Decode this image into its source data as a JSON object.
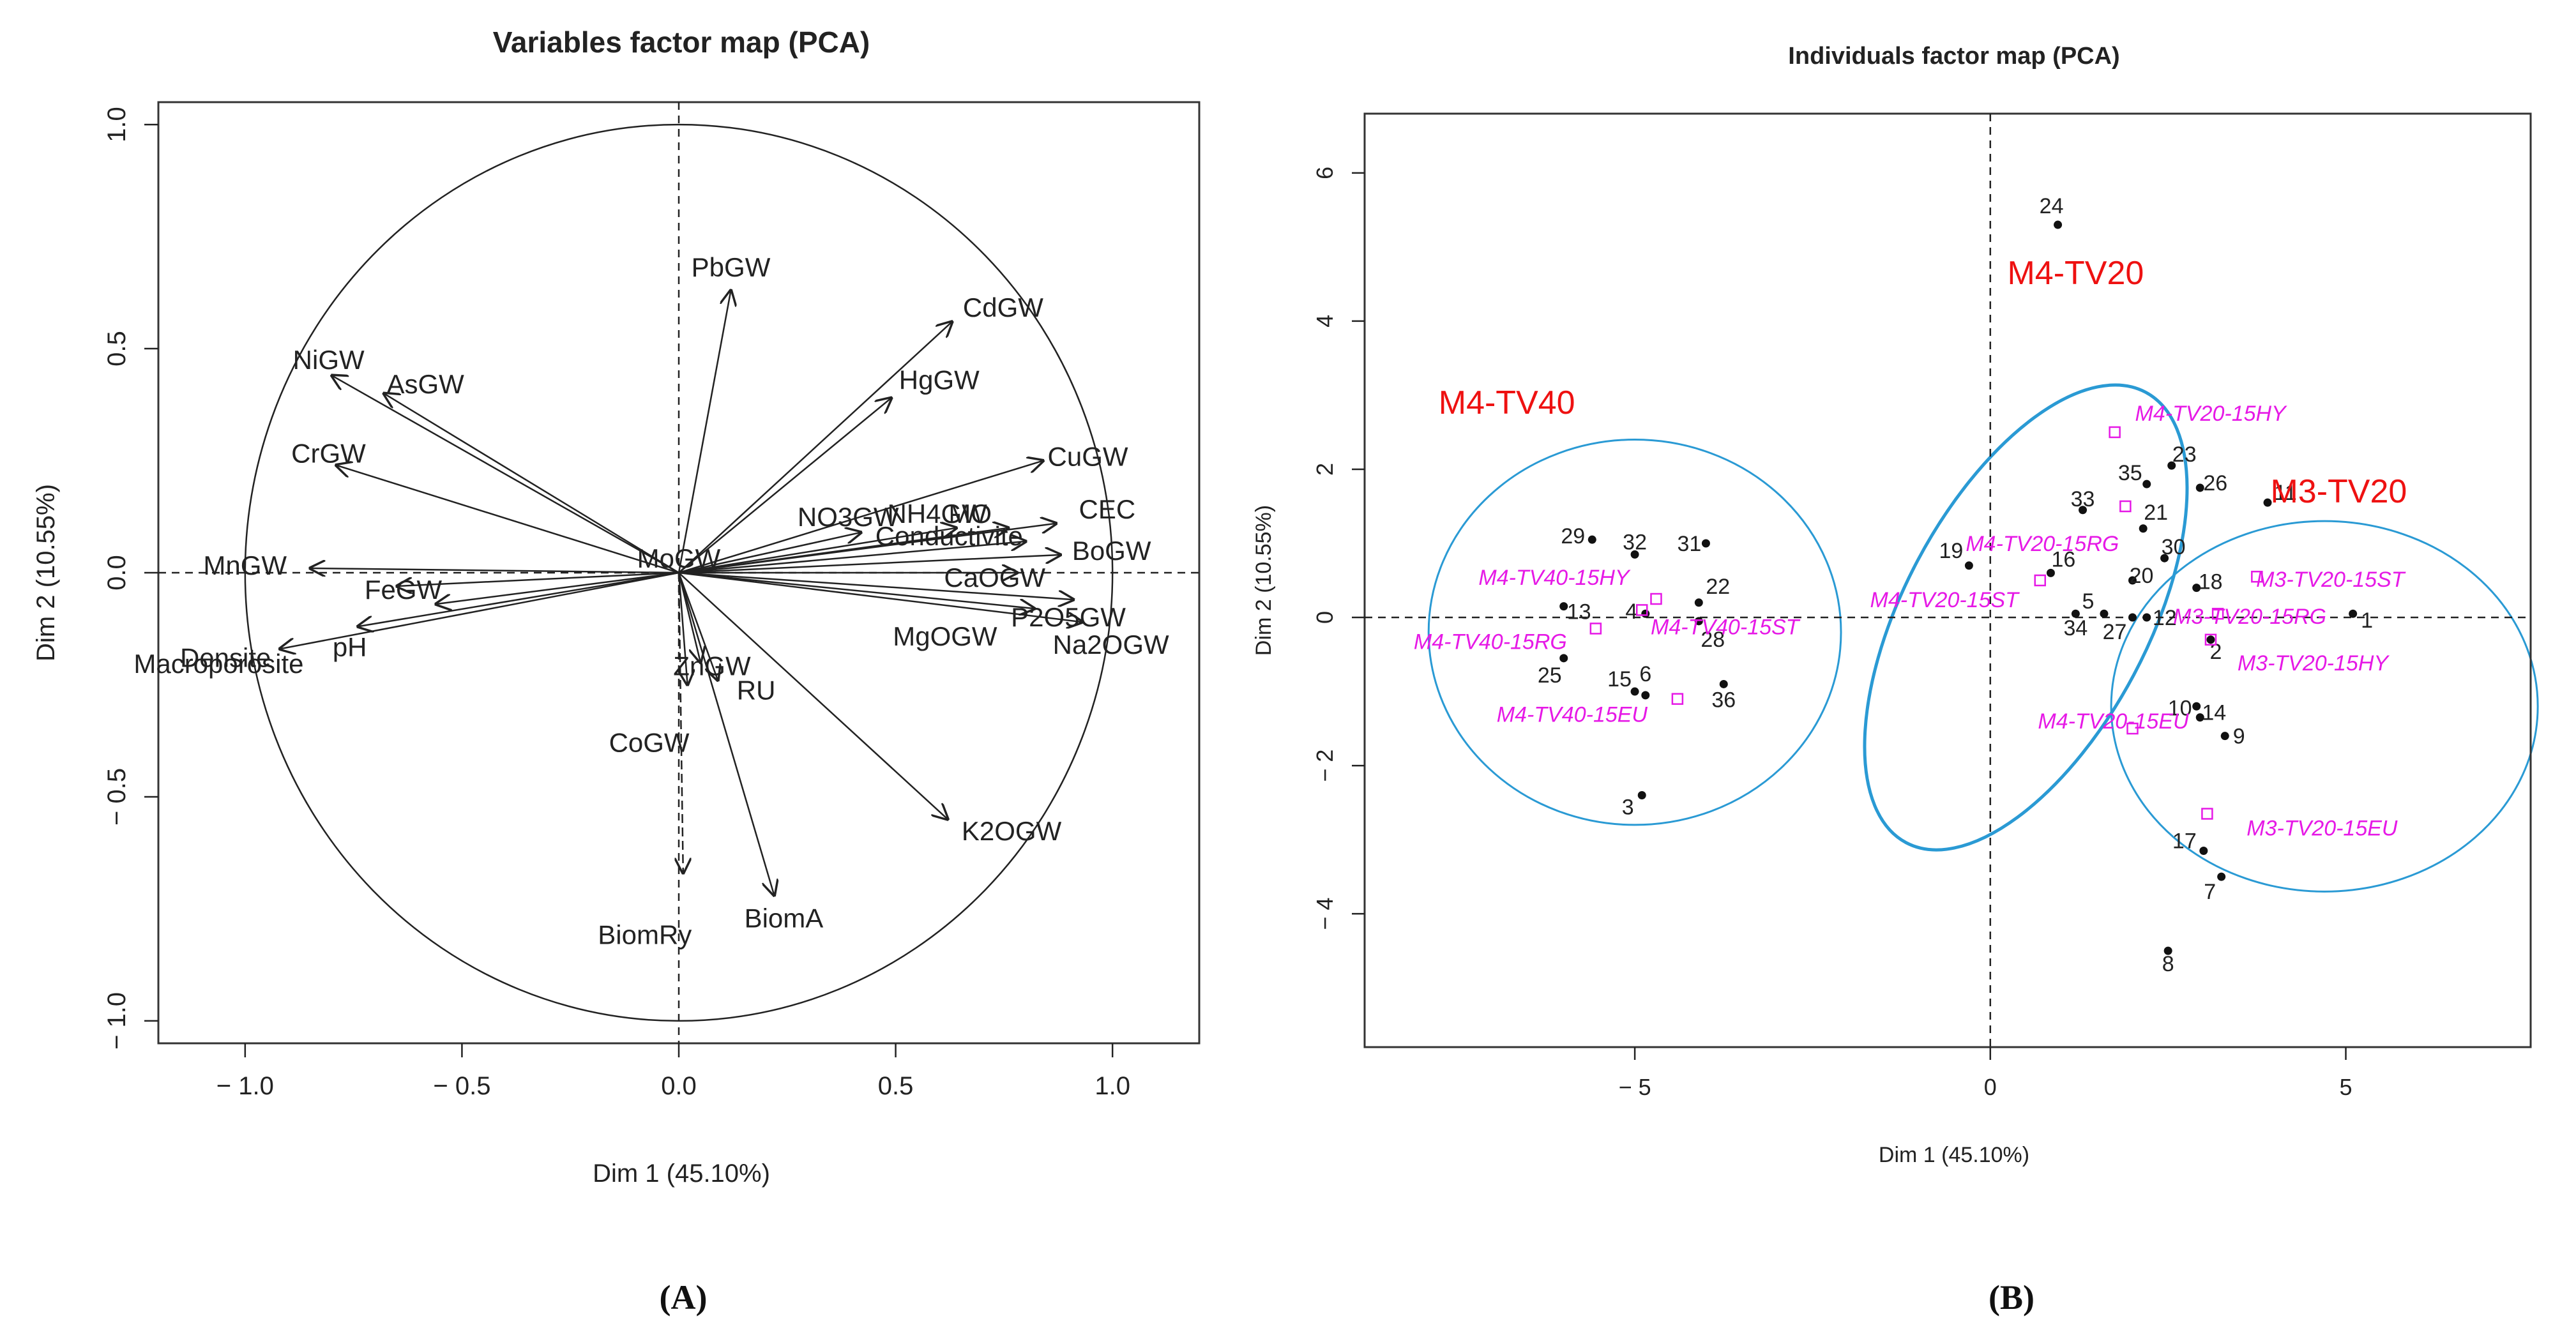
{
  "chart_data": [
    {
      "type": "scatter",
      "subtype": "variables-correlation-circle",
      "panel_label": "(A)",
      "title": "Variables factor map (PCA)",
      "xlabel": "Dim 1 (45.10%)",
      "ylabel": "Dim 2 (10.55%)",
      "xlim": [
        -1.2,
        1.2
      ],
      "ylim": [
        -1.05,
        1.05
      ],
      "xticks": [
        {
          "value": -1.0,
          "label": "− 1.0"
        },
        {
          "value": -0.5,
          "label": "− 0.5"
        },
        {
          "value": 0.0,
          "label": "0.0"
        },
        {
          "value": 0.5,
          "label": "0.5"
        },
        {
          "value": 1.0,
          "label": "1.0"
        }
      ],
      "yticks": [
        {
          "value": -1.0,
          "label": "− 1.0"
        },
        {
          "value": -0.5,
          "label": "− 0.5"
        },
        {
          "value": 0.0,
          "label": "0.0"
        },
        {
          "value": 0.5,
          "label": "0.5"
        },
        {
          "value": 1.0,
          "label": "1.0"
        }
      ],
      "circle_radius": 1.0,
      "vectors": [
        {
          "name": "PbGW",
          "x": 0.12,
          "y": 0.63
        },
        {
          "name": "CdGW",
          "x": 0.63,
          "y": 0.56
        },
        {
          "name": "HgGW",
          "x": 0.49,
          "y": 0.39
        },
        {
          "name": "CuGW",
          "x": 0.84,
          "y": 0.25
        },
        {
          "name": "NiGW",
          "x": -0.8,
          "y": 0.44
        },
        {
          "name": "AsGW",
          "x": -0.68,
          "y": 0.4
        },
        {
          "name": "CrGW",
          "x": -0.79,
          "y": 0.24
        },
        {
          "name": "NO3GW",
          "x": 0.42,
          "y": 0.09
        },
        {
          "name": "NH4GW",
          "x": 0.64,
          "y": 0.1
        },
        {
          "name": "MO",
          "x": 0.76,
          "y": 0.1
        },
        {
          "name": "CEC",
          "x": 0.87,
          "y": 0.11
        },
        {
          "name": "Conductivite",
          "x": 0.8,
          "y": 0.07
        },
        {
          "name": "BoGW",
          "x": 0.88,
          "y": 0.04
        },
        {
          "name": "CaOGW",
          "x": 0.78,
          "y": 0.0
        },
        {
          "name": "P2O5GW",
          "x": 0.91,
          "y": -0.06
        },
        {
          "name": "Na2OGW",
          "x": 0.93,
          "y": -0.11
        },
        {
          "name": "MgOGW",
          "x": 0.82,
          "y": -0.08
        },
        {
          "name": "MnGW",
          "x": -0.85,
          "y": 0.01
        },
        {
          "name": "FeGW",
          "x": -0.65,
          "y": -0.03
        },
        {
          "name": "Macroporosite",
          "x": -0.74,
          "y": -0.12
        },
        {
          "name": "pH",
          "x": -0.56,
          "y": -0.07
        },
        {
          "name": "Densite",
          "x": -0.92,
          "y": -0.17
        },
        {
          "name": "ZnGW",
          "x": 0.05,
          "y": -0.2
        },
        {
          "name": "CoGW",
          "x": 0.02,
          "y": -0.25
        },
        {
          "name": "RU",
          "x": 0.09,
          "y": -0.24
        },
        {
          "name": "K2OGW",
          "x": 0.62,
          "y": -0.55
        },
        {
          "name": "BiomA",
          "x": 0.22,
          "y": -0.72
        },
        {
          "name": "BiomRy",
          "x": 0.01,
          "y": -0.67
        },
        {
          "name": "MoGW",
          "x": 0.0,
          "y": 0.0
        }
      ]
    },
    {
      "type": "scatter",
      "subtype": "individuals-factor-map",
      "panel_label": "(B)",
      "title": "Individuals factor map (PCA)",
      "xlabel": "Dim 1 (45.10%)",
      "ylabel": "Dim 2 (10.55%)",
      "xlim": [
        -8.8,
        7.6
      ],
      "ylim": [
        -5.8,
        6.8
      ],
      "xticks": [
        {
          "value": -5,
          "label": "− 5"
        },
        {
          "value": 0,
          "label": "0"
        },
        {
          "value": 5,
          "label": "5"
        }
      ],
      "yticks": [
        {
          "value": -4,
          "label": "− 4"
        },
        {
          "value": -2,
          "label": "− 2"
        },
        {
          "value": 0,
          "label": "0"
        },
        {
          "value": 2,
          "label": "2"
        },
        {
          "value": 4,
          "label": "4"
        },
        {
          "value": 6,
          "label": "6"
        }
      ],
      "points": [
        {
          "label": "1",
          "x": 5.1,
          "y": 0.05
        },
        {
          "label": "2",
          "x": 3.1,
          "y": -0.3
        },
        {
          "label": "3",
          "x": -4.9,
          "y": -2.4
        },
        {
          "label": "4",
          "x": -4.85,
          "y": 0.05
        },
        {
          "label": "5",
          "x": 1.6,
          "y": 0.05
        },
        {
          "label": "6",
          "x": -4.85,
          "y": -1.05
        },
        {
          "label": "7",
          "x": 3.25,
          "y": -3.5
        },
        {
          "label": "8",
          "x": 2.5,
          "y": -4.5
        },
        {
          "label": "9",
          "x": 3.3,
          "y": -1.6
        },
        {
          "label": "10",
          "x": 2.9,
          "y": -1.2
        },
        {
          "label": "11",
          "x": 3.9,
          "y": 1.55
        },
        {
          "label": "12",
          "x": 2.2,
          "y": 0.0
        },
        {
          "label": "13",
          "x": -6.0,
          "y": 0.15
        },
        {
          "label": "14",
          "x": 2.95,
          "y": -1.35
        },
        {
          "label": "15",
          "x": -5.0,
          "y": -1.0
        },
        {
          "label": "16",
          "x": 0.85,
          "y": 0.6
        },
        {
          "label": "17",
          "x": 3.0,
          "y": -3.15
        },
        {
          "label": "18",
          "x": 2.9,
          "y": 0.4
        },
        {
          "label": "19",
          "x": -0.3,
          "y": 0.7
        },
        {
          "label": "20",
          "x": 2.0,
          "y": 0.5
        },
        {
          "label": "21",
          "x": 2.15,
          "y": 1.2
        },
        {
          "label": "22",
          "x": -4.1,
          "y": 0.2
        },
        {
          "label": "23",
          "x": 2.55,
          "y": 2.05
        },
        {
          "label": "24",
          "x": 0.95,
          "y": 5.3
        },
        {
          "label": "25",
          "x": -6.0,
          "y": -0.55
        },
        {
          "label": "26",
          "x": 2.95,
          "y": 1.75
        },
        {
          "label": "27",
          "x": 2.0,
          "y": 0.0
        },
        {
          "label": "28",
          "x": -4.1,
          "y": -0.05
        },
        {
          "label": "29",
          "x": -5.6,
          "y": 1.05
        },
        {
          "label": "30",
          "x": 2.45,
          "y": 0.8
        },
        {
          "label": "31",
          "x": -4.0,
          "y": 1.0
        },
        {
          "label": "32",
          "x": -5.0,
          "y": 0.85
        },
        {
          "label": "33",
          "x": 1.3,
          "y": 1.45
        },
        {
          "label": "34",
          "x": 1.2,
          "y": 0.05
        },
        {
          "label": "35",
          "x": 2.2,
          "y": 1.8
        },
        {
          "label": "36",
          "x": -3.75,
          "y": -0.9
        }
      ],
      "supplementary_points": [
        {
          "label": "M4-TV20-15HY",
          "x": 1.75,
          "y": 2.5
        },
        {
          "label": "M4-TV20-15RG",
          "x": 1.9,
          "y": 1.5
        },
        {
          "label": "M4-TV20-15ST",
          "x": 0.7,
          "y": 0.5
        },
        {
          "label": "M4-TV20-15EU",
          "x": 2.0,
          "y": -1.5
        },
        {
          "label": "M4-TV40-15HY",
          "x": -4.7,
          "y": 0.25
        },
        {
          "label": "M4-TV40-15RG",
          "x": -5.55,
          "y": -0.15
        },
        {
          "label": "M4-TV40-15ST",
          "x": -4.9,
          "y": 0.1
        },
        {
          "label": "M4-TV40-15EU",
          "x": -4.4,
          "y": -1.1
        },
        {
          "label": "M3-TV20-15ST",
          "x": 3.75,
          "y": 0.55
        },
        {
          "label": "M3-TV20-15RG",
          "x": 3.2,
          "y": 0.05
        },
        {
          "label": "M3-TV20-15HY",
          "x": 3.1,
          "y": -0.3
        },
        {
          "label": "M3-TV20-15EU",
          "x": 3.05,
          "y": -2.65
        }
      ],
      "group_ellipses": [
        {
          "label": "M4-TV40",
          "cx": -5.0,
          "cy": -0.2,
          "rx": 2.9,
          "ry": 2.6,
          "angle": 0,
          "stroke": 3
        },
        {
          "label": "M4-TV20",
          "cx": 0.5,
          "cy": 0.0,
          "rx": 4.6,
          "ry": 1.5,
          "angle": 62,
          "stroke": 5
        },
        {
          "label": "M3-TV20",
          "cx": 4.7,
          "cy": -1.2,
          "rx": 3.0,
          "ry": 2.5,
          "angle": 0,
          "stroke": 3
        }
      ],
      "group_labels": [
        {
          "label": "M4-TV40",
          "x": -6.8,
          "y": 2.75
        },
        {
          "label": "M4-TV20",
          "x": 1.2,
          "y": 4.5
        },
        {
          "label": "M3-TV20",
          "x": 4.9,
          "y": 1.55
        }
      ]
    }
  ],
  "colors": {
    "axis": "#222222",
    "text": "#222222",
    "supplementary": "#e619e6",
    "ellipse": "#2a9ad4",
    "group_label": "#ee1111"
  }
}
